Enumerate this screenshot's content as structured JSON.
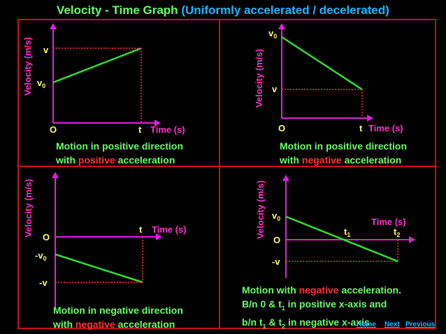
{
  "title": {
    "main": "Velocity - Time Graph",
    "sub": "(Uniformly accelerated / decelerated)"
  },
  "colors": {
    "frame": "#cc1111",
    "axes": "#e020e0",
    "line": "#33dd33",
    "guide": "#ff3333",
    "text_green": "#66ff66",
    "text_magenta": "#ff33cc",
    "text_yellow": "#ffff66",
    "accent_blue": "#1fb5ff"
  },
  "graphs": {
    "g1": {
      "ylabel": "Velocity (m/s)",
      "xlabel": "Time (s)",
      "v_label": "v",
      "v0_label": "v0",
      "origin_label": "O",
      "t_label": "t",
      "desc_line1": "Motion in positive direction",
      "desc_line2_pre": "with ",
      "desc_line2_red": "positive",
      "desc_line2_post": " acceleration"
    },
    "g2": {
      "ylabel": "Velocity (m/s)",
      "xlabel": "Time (s)",
      "v0_label": "v0",
      "v_label": "v",
      "origin_label": "O",
      "t_label": "t",
      "desc_line1": "Motion in positive direction",
      "desc_line2_pre": "with ",
      "desc_line2_red": "negative",
      "desc_line2_post": " acceleration"
    },
    "g3": {
      "ylabel": "Velocity (m/s)",
      "xlabel": "Time (s)",
      "origin_label": "O",
      "t_label": "t",
      "neg_v0_label": "-v0",
      "neg_v_label": "-v",
      "desc_line1": "Motion in negative direction",
      "desc_line2_pre": "with ",
      "desc_line2_red": "negative",
      "desc_line2_post": " acceleration"
    },
    "g4": {
      "ylabel": "Velocity (m/s)",
      "xlabel": "Time (s)",
      "v0_label": "v0",
      "origin_label": "O",
      "t1_label": "t1",
      "t2_label": "t2",
      "neg_v_label": "-v",
      "desc_line1_pre": "Motion with ",
      "desc_line1_red": "negative",
      "desc_line1_post": " acceleration.",
      "desc_line2_a": "B/n 0 & t",
      "desc_line2_sub": "1",
      "desc_line2_b": " in positive x-axis and",
      "desc_line3_a": "b/n t",
      "desc_line3_sub1": "1",
      "desc_line3_b": " & t",
      "desc_line3_sub2": "2",
      "desc_line3_c": " in negative x-axis"
    }
  },
  "nav": {
    "home": "Home",
    "next": "Next",
    "previous": "Previous"
  }
}
